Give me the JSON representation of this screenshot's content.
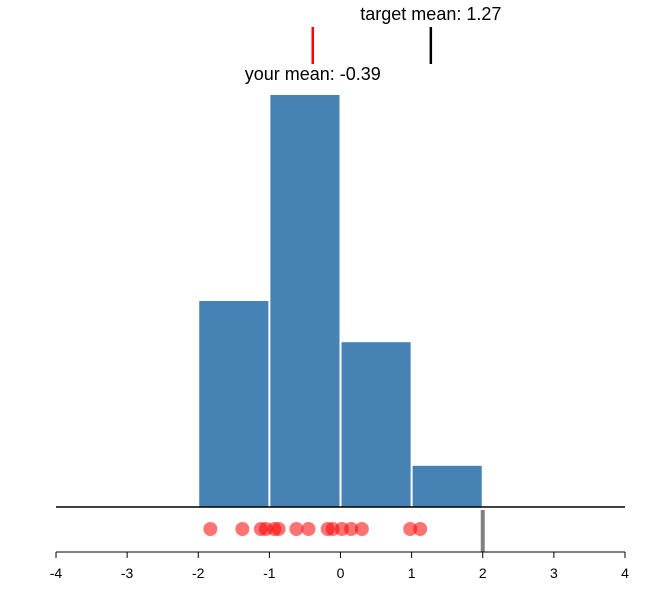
{
  "chart_data": {
    "type": "bar",
    "bins": [
      {
        "x0": -2,
        "x1": -1,
        "count": 5
      },
      {
        "x0": -1,
        "x1": 0,
        "count": 10
      },
      {
        "x0": 0,
        "x1": 1,
        "count": 4
      },
      {
        "x0": 1,
        "x1": 2,
        "count": 1
      }
    ],
    "points": [
      -1.83,
      -1.38,
      -1.12,
      -1.05,
      -0.93,
      -0.87,
      -0.62,
      -0.45,
      -0.18,
      -0.11,
      0.02,
      0.15,
      0.3,
      0.98,
      1.12
    ],
    "xlim": [
      -4,
      4
    ],
    "ylim": [
      0,
      10
    ],
    "x_ticks": [
      "-4",
      "-3",
      "-2",
      "-1",
      "0",
      "1",
      "2",
      "3",
      "4"
    ],
    "your_mean": {
      "value": -0.39,
      "label": "your mean: -0.39",
      "color": "#ff0000"
    },
    "target_mean": {
      "value": 1.27,
      "label": "target mean: 1.27",
      "color": "#000000"
    },
    "handle_value": 2,
    "bar_color": "#4682b4",
    "point_color": "#ff0000"
  }
}
